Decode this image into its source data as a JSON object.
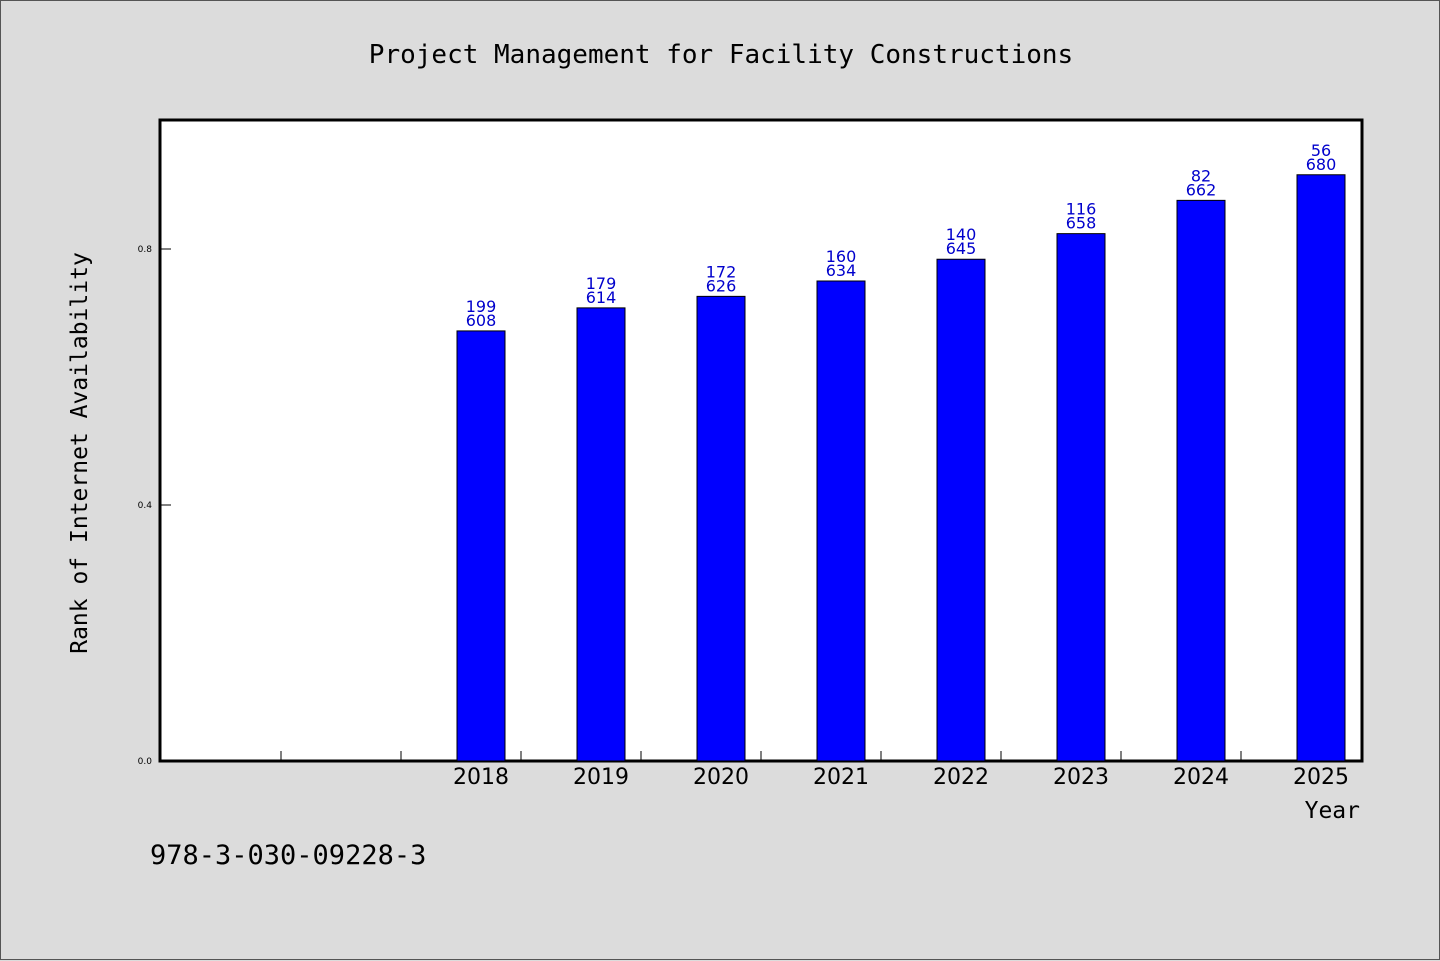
{
  "chart_data": {
    "type": "bar",
    "title": "Project Management for Facility Constructions",
    "xlabel": "Year",
    "ylabel": "Rank of Internet Availability",
    "footnote": "978-3-030-09228-3",
    "categories": [
      "2018",
      "2019",
      "2020",
      "2021",
      "2022",
      "2023",
      "2024",
      "2025"
    ],
    "x_slots": 10,
    "first_category_slot": 2,
    "values": [
      0.672,
      0.708,
      0.726,
      0.75,
      0.784,
      0.824,
      0.876,
      0.916
    ],
    "labels_top": [
      "199",
      "179",
      "172",
      "160",
      "140",
      "116",
      "82",
      "56"
    ],
    "labels_bottom": [
      "608",
      "614",
      "626",
      "634",
      "645",
      "658",
      "662",
      "680"
    ],
    "ylim": [
      0,
      1.0
    ],
    "yticks": [
      {
        "value": 0.0,
        "label": "0.0"
      },
      {
        "value": 0.4,
        "label": "0.4"
      },
      {
        "value": 0.8,
        "label": "0.8"
      }
    ],
    "grid": false,
    "colors": {
      "bar": "#0000ff",
      "bar_edge": "#000000",
      "label": "#0000cc",
      "plot_bg": "#ffffff",
      "page_bg": "#dcdcdc"
    }
  }
}
